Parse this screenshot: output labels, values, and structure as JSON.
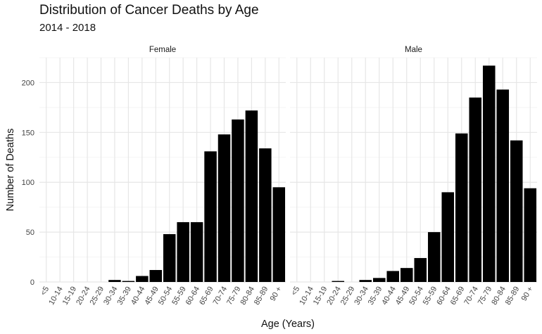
{
  "chart_data": {
    "type": "bar",
    "title": "Distribution of Cancer Deaths by Age",
    "subtitle": "2014 - 2018",
    "xlabel": "Age (Years)",
    "ylabel": "Number of Deaths",
    "ylim": [
      0,
      225
    ],
    "yticks": [
      "0",
      "50",
      "100",
      "150",
      "200"
    ],
    "categories": [
      "<5",
      "10-14",
      "15-19",
      "20-24",
      "25-29",
      "30-34",
      "35-39",
      "40-44",
      "45-49",
      "50-54",
      "55-59",
      "60-64",
      "65-69",
      "70-74",
      "75-79",
      "80-84",
      "85-89",
      "90 +"
    ],
    "panels": [
      {
        "name": "Female",
        "values": [
          0,
          0,
          0,
          0,
          0,
          2,
          1,
          6,
          12,
          48,
          60,
          60,
          131,
          148,
          163,
          172,
          134,
          95
        ]
      },
      {
        "name": "Male",
        "values": [
          0,
          0,
          0,
          1,
          0,
          2,
          4,
          11,
          14,
          24,
          50,
          90,
          149,
          185,
          217,
          193,
          142,
          94
        ]
      }
    ],
    "bar_color": "#000000",
    "grid": true
  }
}
